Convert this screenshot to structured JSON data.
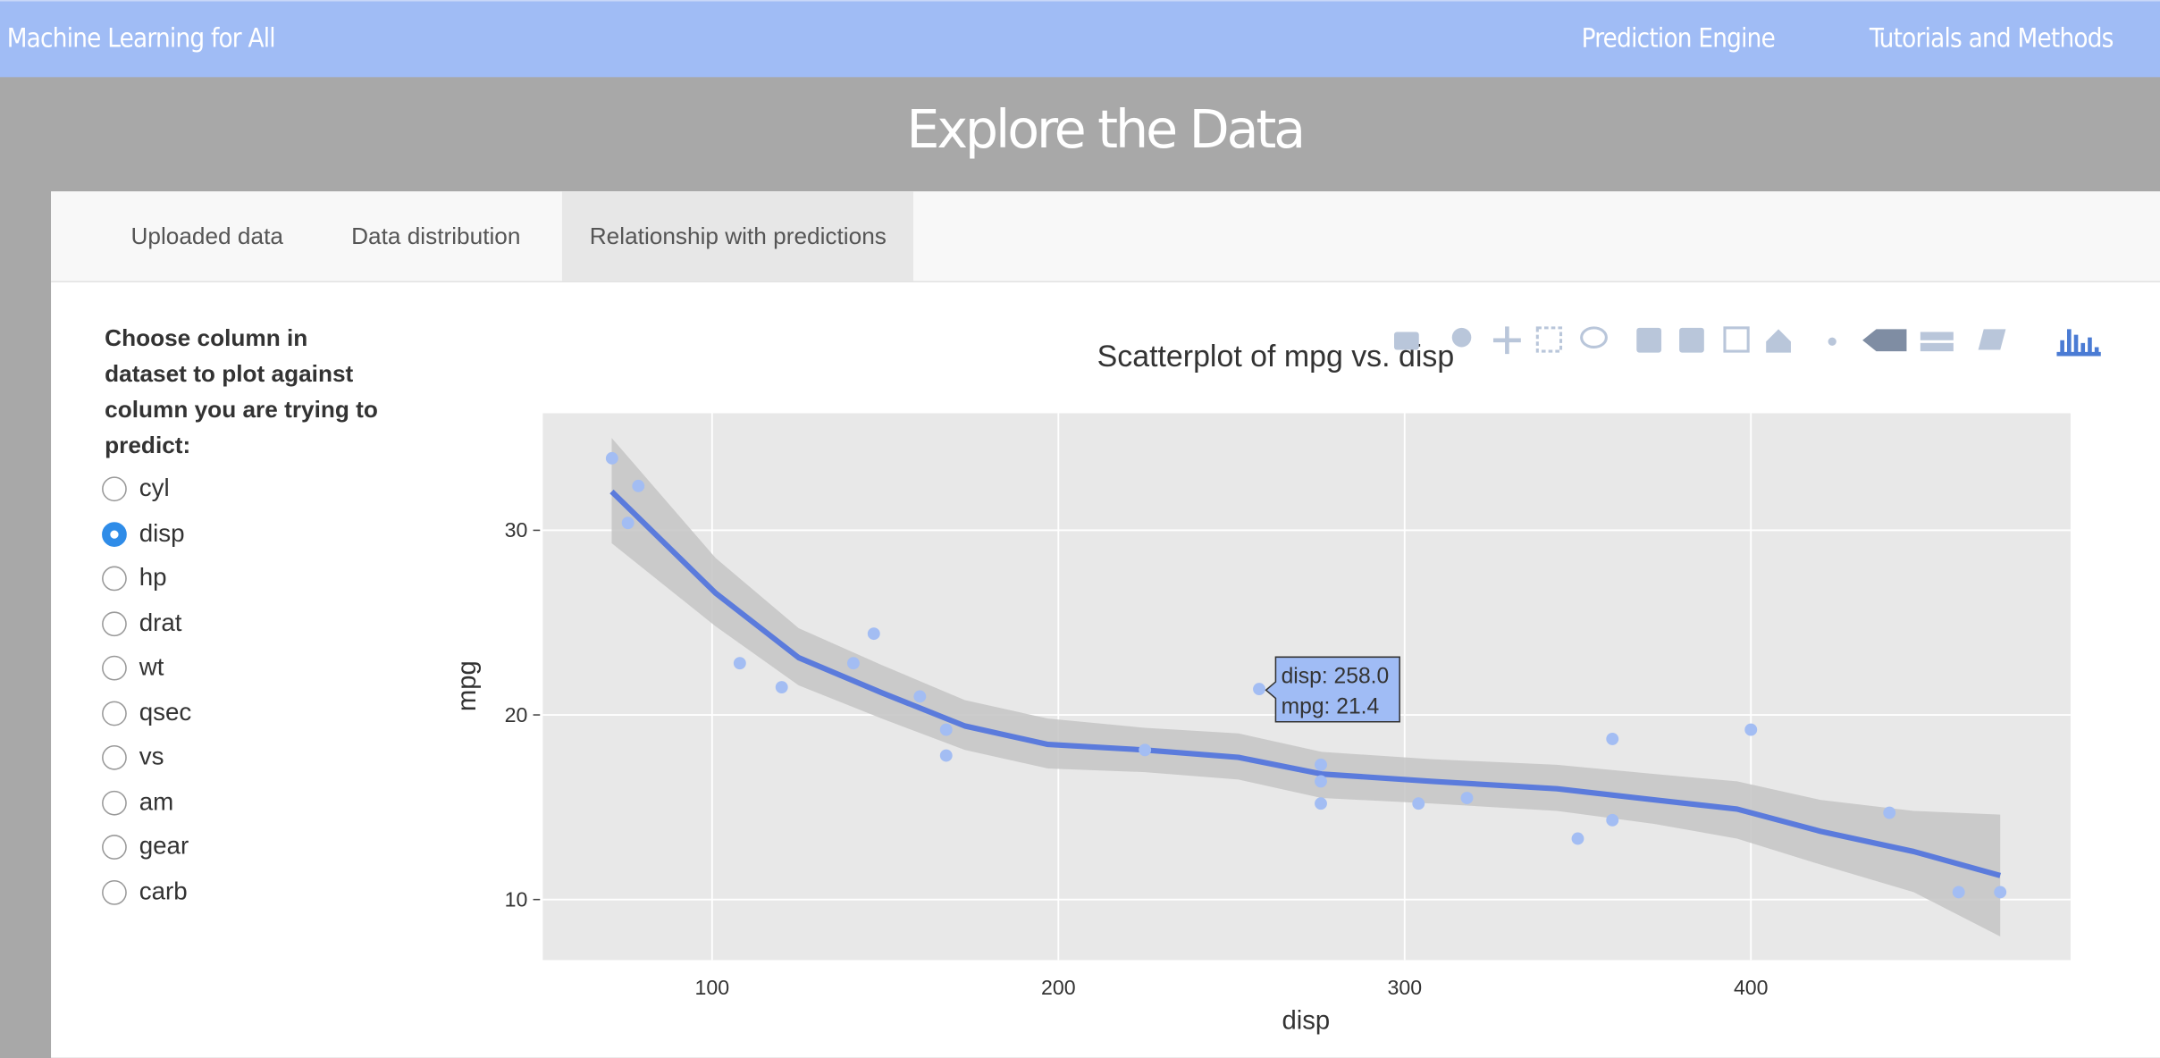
{
  "nav": {
    "brand": "Machine Learning for All",
    "links": [
      "Prediction Engine",
      "Tutorials and Methods"
    ]
  },
  "page_title": "Explore the Data",
  "tabs": {
    "items": [
      "Uploaded data",
      "Data distribution",
      "Relationship with predictions"
    ],
    "active": 2
  },
  "sidebar": {
    "label": "Choose column in dataset to plot against column you are trying to predict:",
    "options": [
      "cyl",
      "disp",
      "hp",
      "drat",
      "wt",
      "qsec",
      "vs",
      "am",
      "gear",
      "carb"
    ],
    "selected": 1
  },
  "chart_data": {
    "type": "scatter",
    "title": "Scatterplot of mpg vs. disp",
    "x_label": "disp",
    "y_label": "mpg",
    "x": [
      71.1,
      75.7,
      78.7,
      108,
      120.1,
      140.8,
      146.7,
      160,
      167.6,
      167.6,
      225,
      258,
      275.8,
      275.8,
      275.8,
      304,
      318,
      350,
      360,
      360,
      400,
      440,
      460,
      472
    ],
    "values": [
      33.9,
      30.4,
      32.4,
      22.8,
      21.5,
      22.8,
      24.4,
      21.0,
      19.2,
      17.8,
      18.1,
      21.4,
      17.3,
      16.4,
      15.2,
      15.2,
      15.5,
      13.3,
      18.7,
      14.3,
      19.2,
      14.7,
      10.4,
      10.4
    ],
    "color": "#a3bdf3",
    "smooth": {
      "x": [
        71,
        101,
        125,
        149,
        173,
        197,
        225,
        252,
        276,
        308,
        344,
        372,
        396,
        420,
        447,
        472
      ],
      "values": [
        32.1,
        26.6,
        23.1,
        21.2,
        19.4,
        18.4,
        18.1,
        17.7,
        16.8,
        16.4,
        16.0,
        15.4,
        14.9,
        13.7,
        12.6,
        11.3
      ],
      "color": "#5b7bdc"
    },
    "band": {
      "x": [
        71,
        101,
        125,
        149,
        173,
        197,
        225,
        252,
        276,
        308,
        344,
        372,
        396,
        420,
        447,
        472
      ],
      "upper": [
        35.0,
        28.5,
        24.7,
        22.7,
        20.8,
        19.8,
        19.3,
        19.0,
        18.0,
        17.6,
        17.3,
        16.8,
        16.4,
        15.4,
        14.8,
        14.6
      ],
      "lower": [
        29.3,
        24.8,
        21.6,
        19.8,
        18.1,
        17.1,
        16.9,
        16.5,
        15.5,
        15.2,
        14.8,
        14.1,
        13.3,
        11.9,
        10.4,
        8.0
      ],
      "color": "#c4c4c4"
    },
    "xlim": [
      51.1,
      492.3
    ],
    "ylim": [
      6.72,
      36.34
    ],
    "xticks": [
      100,
      200,
      300,
      400
    ],
    "yticks": [
      10,
      20,
      30
    ],
    "grid": true,
    "tooltip": [
      "disp: 258.0",
      "mpg: 21.4"
    ]
  }
}
